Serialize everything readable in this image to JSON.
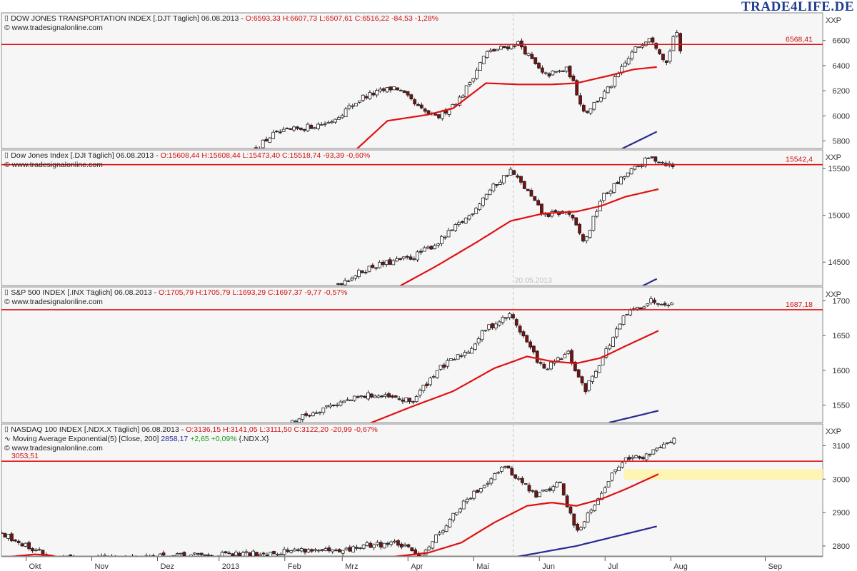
{
  "brand": "TRADE4LIFE.DE",
  "axis_unit": "XXP",
  "copyright": "© www.tradesignalonline.com",
  "x_axis": {
    "labels": [
      "Okt",
      "Nov",
      "Dez",
      "2013",
      "Feb",
      "Mrz",
      "Apr",
      "Mai",
      "Jun",
      "Jul",
      "Aug",
      "Sep"
    ],
    "marker_label": "20.05.2013"
  },
  "chart_data": [
    {
      "type": "candlestick",
      "title": "DOW JONES TRANSPORTATION INDEX [.DJT  Täglich] 06.08.2013",
      "ohlc_text": "O:6593,33 H:6607,73 L:6507,61 C:6516,22 -84,53 -1,28%",
      "ylim": [
        5740,
        6820
      ],
      "yticks": [
        5800,
        6000,
        6200,
        6400,
        6600
      ],
      "hline": {
        "value": 6568.41,
        "label": "6568,41"
      },
      "anchors": [
        [
          0.31,
          5740
        ],
        [
          0.33,
          5850
        ],
        [
          0.4,
          5950
        ],
        [
          0.44,
          6150
        ],
        [
          0.48,
          6230
        ],
        [
          0.51,
          6050
        ],
        [
          0.53,
          5980
        ],
        [
          0.56,
          6150
        ],
        [
          0.59,
          6500
        ],
        [
          0.63,
          6580
        ],
        [
          0.66,
          6320
        ],
        [
          0.69,
          6370
        ],
        [
          0.71,
          6020
        ],
        [
          0.74,
          6220
        ],
        [
          0.77,
          6520
        ],
        [
          0.79,
          6640
        ],
        [
          0.81,
          6420
        ],
        [
          0.82,
          6680
        ],
        [
          0.83,
          6516
        ]
      ],
      "ema_anchors": [
        [
          0.43,
          5720
        ],
        [
          0.47,
          5960
        ],
        [
          0.52,
          6010
        ],
        [
          0.55,
          6060
        ],
        [
          0.59,
          6260
        ],
        [
          0.63,
          6250
        ],
        [
          0.67,
          6250
        ],
        [
          0.7,
          6260
        ],
        [
          0.74,
          6320
        ],
        [
          0.77,
          6370
        ],
        [
          0.8,
          6390
        ]
      ],
      "sma_anchors": [
        [
          0.75,
          5720
        ],
        [
          0.8,
          5880
        ]
      ]
    },
    {
      "type": "candlestick",
      "title": "Dow Jones Index [.DJI  Täglich] 06.08.2013",
      "ohlc_text": "O:15608,44 H:15608,44 L:15473,40 C:15518,74 -93,39 -0,60%",
      "ylim": [
        14250,
        15700
      ],
      "yticks": [
        14500,
        15000,
        15500
      ],
      "hline": {
        "value": 15542.4,
        "label": "15542,4"
      },
      "anchors": [
        [
          0.41,
          14270
        ],
        [
          0.45,
          14450
        ],
        [
          0.5,
          14550
        ],
        [
          0.53,
          14700
        ],
        [
          0.57,
          15000
        ],
        [
          0.59,
          15230
        ],
        [
          0.62,
          15480
        ],
        [
          0.64,
          15260
        ],
        [
          0.66,
          15000
        ],
        [
          0.69,
          15040
        ],
        [
          0.71,
          14700
        ],
        [
          0.73,
          15180
        ],
        [
          0.76,
          15430
        ],
        [
          0.79,
          15620
        ],
        [
          0.82,
          15520
        ]
      ],
      "ema_anchors": [
        [
          0.48,
          14220
        ],
        [
          0.53,
          14460
        ],
        [
          0.58,
          14720
        ],
        [
          0.62,
          14940
        ],
        [
          0.66,
          15020
        ],
        [
          0.7,
          15040
        ],
        [
          0.73,
          15100
        ],
        [
          0.76,
          15200
        ],
        [
          0.8,
          15280
        ]
      ],
      "sma_anchors": [
        [
          0.77,
          14200
        ],
        [
          0.8,
          14330
        ]
      ]
    },
    {
      "type": "candlestick",
      "title": "S&P 500 INDEX [.INX  Täglich] 06.08.2013",
      "ohlc_text": "O:1705,79 H:1705,79 L:1693,29 C:1697,37 -9,77 -0,57%",
      "ylim": [
        1525,
        1720
      ],
      "yticks": [
        1550,
        1600,
        1650,
        1700
      ],
      "hline": {
        "value": 1687.18,
        "label": "1687,18"
      },
      "anchors": [
        [
          0.35,
          1525
        ],
        [
          0.4,
          1550
        ],
        [
          0.45,
          1565
        ],
        [
          0.5,
          1555
        ],
        [
          0.53,
          1600
        ],
        [
          0.57,
          1630
        ],
        [
          0.59,
          1660
        ],
        [
          0.62,
          1680
        ],
        [
          0.64,
          1640
        ],
        [
          0.66,
          1600
        ],
        [
          0.69,
          1625
        ],
        [
          0.71,
          1570
        ],
        [
          0.73,
          1615
        ],
        [
          0.76,
          1680
        ],
        [
          0.79,
          1700
        ],
        [
          0.82,
          1697
        ]
      ],
      "ema_anchors": [
        [
          0.44,
          1520
        ],
        [
          0.5,
          1548
        ],
        [
          0.55,
          1570
        ],
        [
          0.6,
          1603
        ],
        [
          0.64,
          1620
        ],
        [
          0.67,
          1613
        ],
        [
          0.7,
          1610
        ],
        [
          0.73,
          1618
        ],
        [
          0.76,
          1635
        ],
        [
          0.8,
          1657
        ]
      ],
      "sma_anchors": [
        [
          0.74,
          1525
        ],
        [
          0.8,
          1542
        ]
      ]
    },
    {
      "type": "candlestick",
      "title": "NASDAQ 100 INDEX [.NDX.X  Täglich] 06.08.2013",
      "ohlc_text": "O:3136,15 H:3141,05 L:3111,50 C:3122,20 -20,99 -0,67%",
      "ema_text": "Moving Average Exponential(5) [Close, 200]",
      "ema_value": "2858,17",
      "ema_change": "+2,65 +0,09%",
      "ema_symbol": "{.NDX.X}",
      "ylim": [
        2770,
        3165
      ],
      "yticks": [
        2800,
        2900,
        3000,
        3100
      ],
      "hline": {
        "value": 3053.51,
        "label": "3053,51"
      },
      "zone": [
        2998,
        3030
      ],
      "anchors": [
        [
          0.0,
          2840
        ],
        [
          0.03,
          2800
        ],
        [
          0.05,
          2780
        ],
        [
          0.06,
          2760
        ],
        [
          0.3,
          2775
        ],
        [
          0.37,
          2790
        ],
        [
          0.41,
          2780
        ],
        [
          0.44,
          2800
        ],
        [
          0.48,
          2810
        ],
        [
          0.51,
          2770
        ],
        [
          0.53,
          2830
        ],
        [
          0.56,
          2920
        ],
        [
          0.59,
          2990
        ],
        [
          0.61,
          3040
        ],
        [
          0.63,
          3000
        ],
        [
          0.65,
          2950
        ],
        [
          0.68,
          2990
        ],
        [
          0.7,
          2840
        ],
        [
          0.72,
          2920
        ],
        [
          0.74,
          3000
        ],
        [
          0.76,
          3070
        ],
        [
          0.78,
          3060
        ],
        [
          0.8,
          3100
        ],
        [
          0.82,
          3122
        ]
      ],
      "ema_anchors": [
        [
          0.0,
          2765
        ],
        [
          0.04,
          2775
        ],
        [
          0.06,
          2772
        ],
        [
          0.08,
          2760
        ],
        [
          0.45,
          2760
        ],
        [
          0.52,
          2780
        ],
        [
          0.56,
          2810
        ],
        [
          0.6,
          2870
        ],
        [
          0.64,
          2920
        ],
        [
          0.67,
          2930
        ],
        [
          0.7,
          2920
        ],
        [
          0.73,
          2940
        ],
        [
          0.76,
          2970
        ],
        [
          0.8,
          3015
        ]
      ],
      "sma_anchors": [
        [
          0.61,
          2760
        ],
        [
          0.7,
          2800
        ],
        [
          0.8,
          2860
        ]
      ]
    }
  ]
}
